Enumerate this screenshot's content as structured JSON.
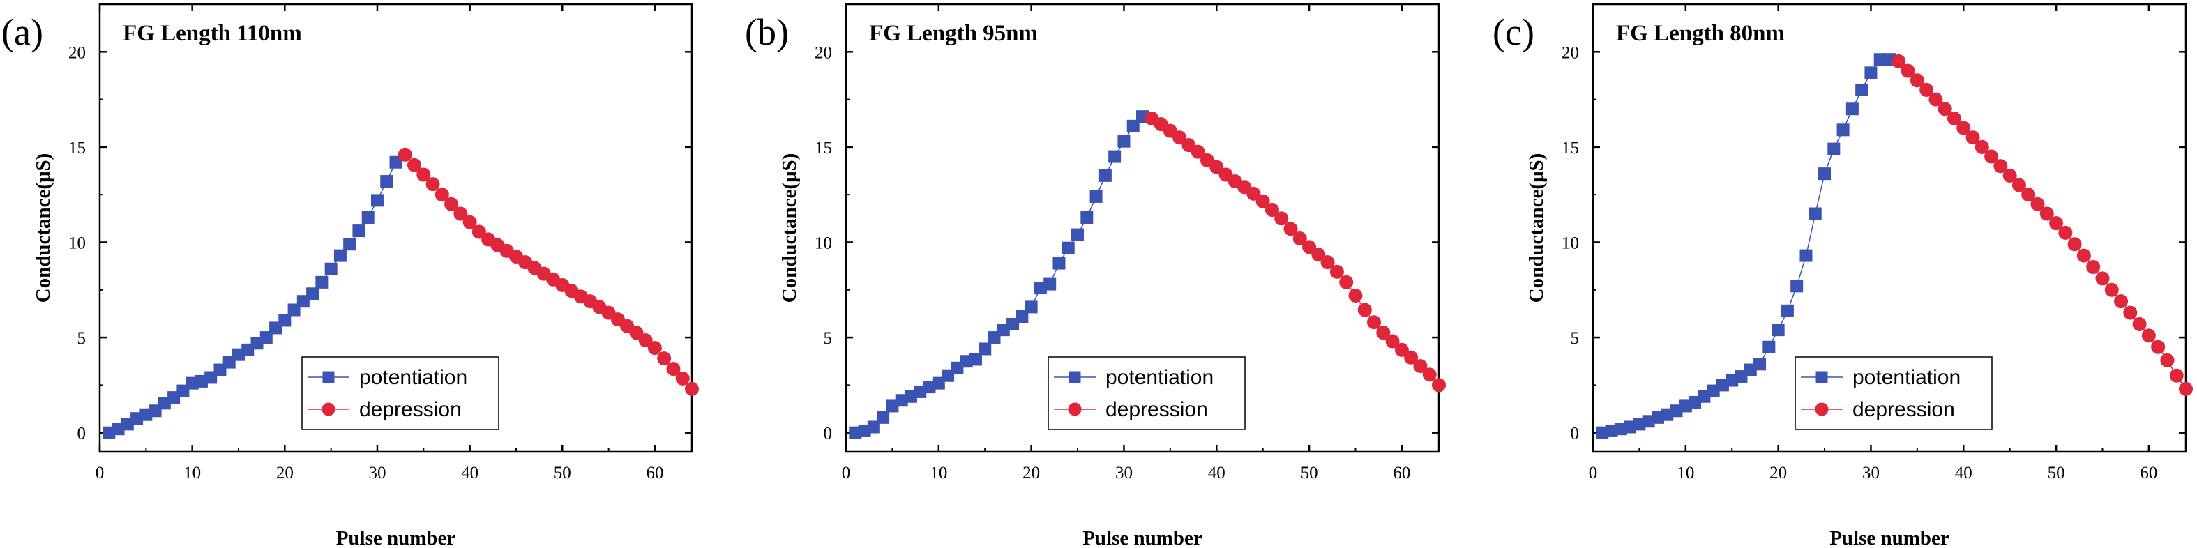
{
  "chart_data": [
    {
      "type": "scatter",
      "panel": "(a)",
      "title": "FG Length 110nm",
      "xlabel": "Pulse number",
      "ylabel": "Conductance(μS)",
      "xlim": [
        0,
        64
      ],
      "ylim": [
        -1,
        22.5
      ],
      "xticks": [
        0,
        10,
        20,
        30,
        40,
        50,
        60
      ],
      "yticks": [
        0,
        5,
        10,
        15,
        20
      ],
      "legend": "lower-right",
      "series": [
        {
          "name": "potentiation",
          "color": "#3b54b4",
          "marker": "square",
          "x": [
            1,
            2,
            3,
            4,
            5,
            6,
            7,
            8,
            9,
            10,
            11,
            12,
            13,
            14,
            15,
            16,
            17,
            18,
            19,
            20,
            21,
            22,
            23,
            24,
            25,
            26,
            27,
            28,
            29,
            30,
            31,
            32
          ],
          "y": [
            0,
            0.2,
            0.45,
            0.75,
            0.95,
            1.15,
            1.55,
            1.85,
            2.2,
            2.6,
            2.7,
            2.9,
            3.3,
            3.7,
            4.1,
            4.35,
            4.7,
            5.0,
            5.5,
            5.9,
            6.45,
            6.9,
            7.3,
            7.9,
            8.6,
            9.3,
            9.9,
            10.6,
            11.3,
            12.2,
            13.2,
            14.2
          ]
        },
        {
          "name": "depression",
          "color": "#e0263a",
          "marker": "circle",
          "x": [
            33,
            34,
            35,
            36,
            37,
            38,
            39,
            40,
            41,
            42,
            43,
            44,
            45,
            46,
            47,
            48,
            49,
            50,
            51,
            52,
            53,
            54,
            55,
            56,
            57,
            58,
            59,
            60,
            61,
            62,
            63,
            64
          ],
          "y": [
            14.6,
            14.05,
            13.55,
            13.05,
            12.5,
            12.0,
            11.5,
            11.05,
            10.55,
            10.15,
            9.85,
            9.55,
            9.25,
            8.95,
            8.65,
            8.35,
            8.05,
            7.75,
            7.45,
            7.15,
            6.9,
            6.6,
            6.3,
            5.95,
            5.6,
            5.25,
            4.85,
            4.45,
            3.9,
            3.35,
            2.85,
            2.3
          ]
        }
      ]
    },
    {
      "type": "scatter",
      "panel": "(b)",
      "title": "FG Length 95nm",
      "xlabel": "Pulse number",
      "ylabel": "Conductance(μS)",
      "xlim": [
        0,
        64
      ],
      "ylim": [
        -1,
        22.5
      ],
      "xticks": [
        0,
        10,
        20,
        30,
        40,
        50,
        60
      ],
      "yticks": [
        0,
        5,
        10,
        15,
        20
      ],
      "legend": "lower-right",
      "series": [
        {
          "name": "potentiation",
          "color": "#3b54b4",
          "marker": "square",
          "x": [
            1,
            2,
            3,
            4,
            5,
            6,
            7,
            8,
            9,
            10,
            11,
            12,
            13,
            14,
            15,
            16,
            17,
            18,
            19,
            20,
            21,
            22,
            23,
            24,
            25,
            26,
            27,
            28,
            29,
            30,
            31,
            32
          ],
          "y": [
            0,
            0.1,
            0.3,
            0.8,
            1.4,
            1.7,
            1.9,
            2.15,
            2.4,
            2.6,
            3.0,
            3.4,
            3.75,
            3.85,
            4.4,
            5.0,
            5.4,
            5.7,
            6.1,
            6.6,
            7.6,
            7.8,
            8.9,
            9.7,
            10.4,
            11.3,
            12.4,
            13.5,
            14.5,
            15.3,
            16.1,
            16.6
          ]
        },
        {
          "name": "depression",
          "color": "#e0263a",
          "marker": "circle",
          "x": [
            33,
            34,
            35,
            36,
            37,
            38,
            39,
            40,
            41,
            42,
            43,
            44,
            45,
            46,
            47,
            48,
            49,
            50,
            51,
            52,
            53,
            54,
            55,
            56,
            57,
            58,
            59,
            60,
            61,
            62,
            63,
            64
          ],
          "y": [
            16.5,
            16.2,
            15.85,
            15.5,
            15.1,
            14.75,
            14.3,
            13.95,
            13.55,
            13.2,
            12.9,
            12.55,
            12.15,
            11.7,
            11.25,
            10.7,
            10.2,
            9.75,
            9.35,
            8.95,
            8.45,
            7.9,
            7.2,
            6.45,
            5.8,
            5.25,
            4.8,
            4.35,
            3.95,
            3.5,
            3.05,
            2.5
          ]
        }
      ]
    },
    {
      "type": "scatter",
      "panel": "(c)",
      "title": "FG Length 80nm",
      "xlabel": "Pulse number",
      "ylabel": "Conductance(μS)",
      "xlim": [
        0,
        64
      ],
      "ylim": [
        -1,
        22.5
      ],
      "xticks": [
        0,
        10,
        20,
        30,
        40,
        50,
        60
      ],
      "yticks": [
        0,
        5,
        10,
        15,
        20
      ],
      "legend": "lower-right",
      "series": [
        {
          "name": "potentiation",
          "color": "#3b54b4",
          "marker": "square",
          "x": [
            1,
            2,
            3,
            4,
            5,
            6,
            7,
            8,
            9,
            10,
            11,
            12,
            13,
            14,
            15,
            16,
            17,
            18,
            19,
            20,
            21,
            22,
            23,
            24,
            25,
            26,
            27,
            28,
            29,
            30,
            31,
            32
          ],
          "y": [
            0,
            0.1,
            0.2,
            0.3,
            0.45,
            0.6,
            0.8,
            0.95,
            1.15,
            1.4,
            1.6,
            1.9,
            2.2,
            2.5,
            2.75,
            2.95,
            3.3,
            3.6,
            4.5,
            5.4,
            6.4,
            7.7,
            9.3,
            11.5,
            13.6,
            14.9,
            15.9,
            17.0,
            18.0,
            18.9,
            19.6,
            19.6
          ]
        },
        {
          "name": "depression",
          "color": "#e0263a",
          "marker": "circle",
          "x": [
            33,
            34,
            35,
            36,
            37,
            38,
            39,
            40,
            41,
            42,
            43,
            44,
            45,
            46,
            47,
            48,
            49,
            50,
            51,
            52,
            53,
            54,
            55,
            56,
            57,
            58,
            59,
            60,
            61,
            62,
            63,
            64
          ],
          "y": [
            19.5,
            19.0,
            18.5,
            18.0,
            17.5,
            17.0,
            16.5,
            16.0,
            15.5,
            15.0,
            14.5,
            14.0,
            13.5,
            13.0,
            12.5,
            12.0,
            11.5,
            11.0,
            10.5,
            9.9,
            9.3,
            8.7,
            8.1,
            7.5,
            6.9,
            6.3,
            5.7,
            5.1,
            4.5,
            3.8,
            3.0,
            2.3
          ]
        }
      ]
    }
  ]
}
